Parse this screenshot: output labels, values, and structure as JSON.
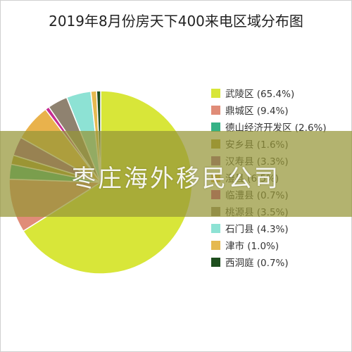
{
  "chart_data": {
    "type": "pie",
    "title": "2019年8月份房天下400来电区域分布图",
    "legend_position": "right",
    "slices": [
      {
        "label": "武陵区 (65.4%)",
        "value": 65.4,
        "color": "#d8e639"
      },
      {
        "label": "鼎城区 (9.4%)",
        "value": 9.4,
        "color": "#e08c78"
      },
      {
        "label": "德山经济开发区 (2.6%)",
        "value": 2.6,
        "color": "#35b286"
      },
      {
        "label": "安乡县 (1.6%)",
        "value": 1.6,
        "color": "#a9942b"
      },
      {
        "label": "汉寿县 (3.3%)",
        "value": 3.3,
        "color": "#9d4f96"
      },
      {
        "label": "澧县 (6.5%)",
        "value": 6.5,
        "color": "#e9b24c"
      },
      {
        "label": "临澧县 (0.7%)",
        "value": 0.7,
        "color": "#c42e93"
      },
      {
        "label": "桃源县 (3.5%)",
        "value": 3.5,
        "color": "#8f8270"
      },
      {
        "label": "石门县 (4.3%)",
        "value": 4.3,
        "color": "#8de2d4"
      },
      {
        "label": "津市 (1.0%)",
        "value": 1.0,
        "color": "#e5b950"
      },
      {
        "label": "西洞庭 (0.7%)",
        "value": 0.7,
        "color": "#1e4e1e"
      }
    ]
  },
  "watermark": {
    "text": "枣庄海外移民公司"
  }
}
